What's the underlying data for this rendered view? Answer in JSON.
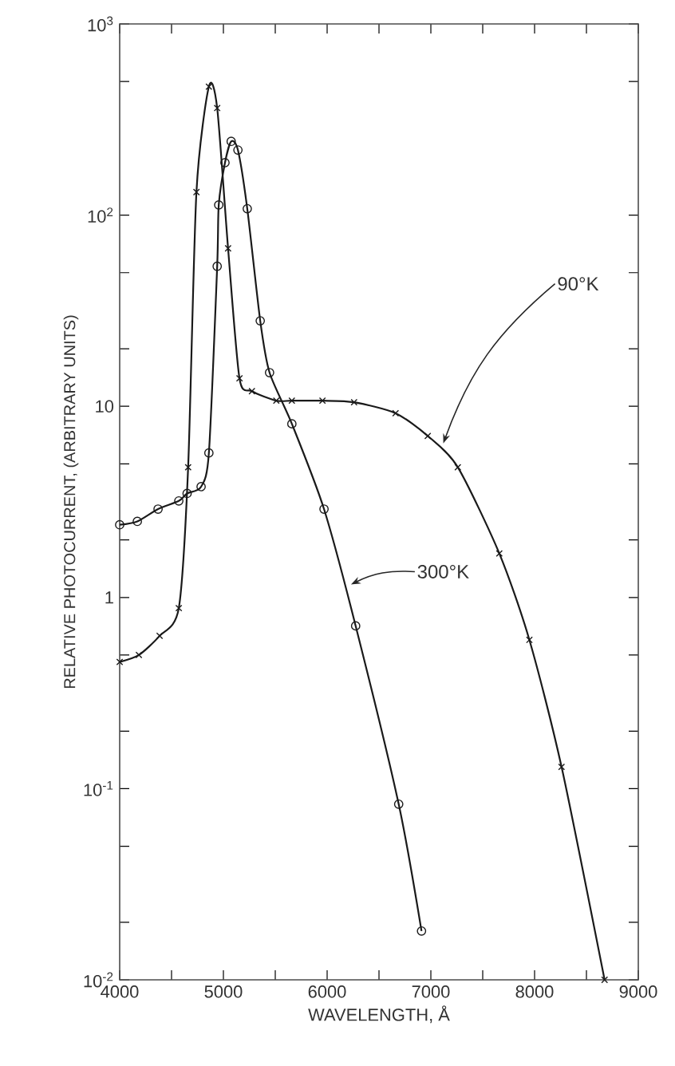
{
  "chart_data": {
    "type": "line",
    "xlabel": "WAVELENGTH, Å",
    "ylabel": "RELATIVE PHOTOCURRENT, (ARBITRARY UNITS)",
    "log": "y",
    "xlim": [
      4000,
      9000
    ],
    "ylim": [
      0.01,
      1000
    ],
    "xticks": [
      4000,
      {
        "value": 4500,
        "label": null
      },
      5000,
      {
        "value": 5500,
        "label": null
      },
      6000,
      {
        "value": 6500,
        "label": null
      },
      7000,
      {
        "value": 7500,
        "label": null
      },
      8000,
      {
        "value": 8500,
        "label": null
      },
      9000
    ],
    "yticks": [
      {
        "value": 0.01,
        "label": "10$^{-2}$"
      },
      {
        "value": 0.02,
        "label": null
      },
      {
        "value": 0.05,
        "label": null
      },
      {
        "value": 0.1,
        "label": "10$^{-1}$"
      },
      {
        "value": 0.2,
        "label": null
      },
      {
        "value": 0.5,
        "label": null
      },
      1,
      {
        "value": 2,
        "label": null
      },
      {
        "value": 5,
        "label": null
      },
      10,
      {
        "value": 20,
        "label": null
      },
      {
        "value": 50,
        "label": null
      },
      {
        "value": 100,
        "label": "10$^{2}$"
      },
      {
        "value": 500,
        "label": null
      },
      {
        "value": 1000,
        "label": "10$^{3}$"
      }
    ],
    "series": [
      {
        "color": "#1a1a1a",
        "marker": "circle",
        "x": [
          4000,
          4170,
          4370,
          4570,
          4650,
          4785,
          4860,
          4940,
          4955,
          5015,
          5075,
          5140,
          5230,
          5355,
          5445,
          5660,
          5970,
          6275,
          6690,
          6910
        ],
        "values": [
          2.4,
          2.5,
          2.9,
          3.2,
          3.5,
          3.8,
          5.7,
          54,
          113,
          188,
          243,
          219,
          108,
          28,
          15,
          8.1,
          2.9,
          0.71,
          0.083,
          0.018
        ]
      },
      {
        "color": "#1a1a1a",
        "marker": "cross",
        "x": [
          4000,
          4185,
          4385,
          4570,
          4660,
          4740,
          4860,
          4940,
          5045,
          5155,
          5275,
          5510,
          5660,
          5955,
          6260,
          6660,
          6970,
          7260,
          7660,
          7950,
          8260,
          8675
        ],
        "values": [
          0.46,
          0.5,
          0.63,
          0.88,
          4.8,
          132,
          470,
          363,
          67,
          14,
          12,
          10.7,
          10.7,
          10.7,
          10.5,
          9.2,
          7,
          4.8,
          1.7,
          0.6,
          0.13,
          0.01
        ]
      }
    ],
    "annotations": [
      {
        "text": "90°K",
        "x": 7120,
        "y": 6.4
      },
      {
        "text": "300°K",
        "x": 6230,
        "y": 1.17
      }
    ]
  }
}
